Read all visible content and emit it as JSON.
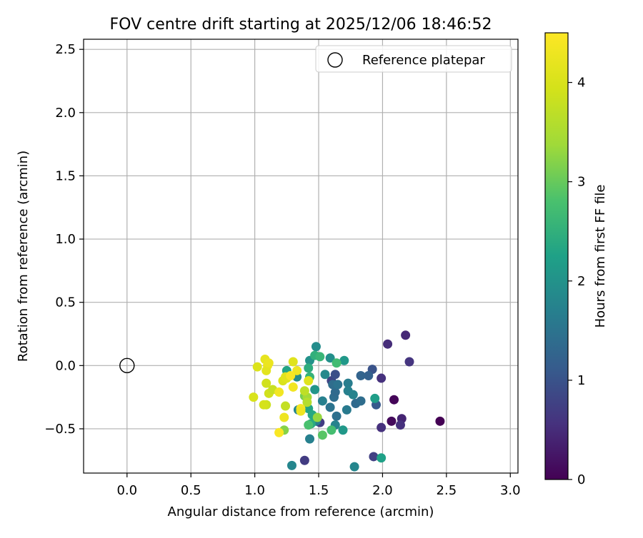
{
  "chart_data": {
    "type": "scatter",
    "title": "FOV centre drift starting at 2025/12/06 18:46:52",
    "xlabel": "Angular distance from reference (arcmin)",
    "ylabel": "Rotation from reference (arcmin)",
    "xlim": [
      -0.34,
      3.06
    ],
    "ylim": [
      -0.85,
      2.58
    ],
    "xticks": [
      0.0,
      0.5,
      1.0,
      1.5,
      2.0,
      2.5,
      3.0
    ],
    "xtick_labels": [
      "0.0",
      "0.5",
      "1.0",
      "1.5",
      "2.0",
      "2.5",
      "3.0"
    ],
    "yticks": [
      -0.5,
      0.0,
      0.5,
      1.0,
      1.5,
      2.0,
      2.5
    ],
    "ytick_labels": [
      "−0.5",
      "0.0",
      "0.5",
      "1.0",
      "1.5",
      "2.0",
      "2.5"
    ],
    "grid": true,
    "legend": {
      "placement": "upper right",
      "entries": [
        {
          "label": "Reference platepar",
          "marker": "open-circle",
          "color": "#000000"
        }
      ]
    },
    "reference_point": {
      "x": 0.0,
      "y": 0.0
    },
    "colorbar": {
      "label": "Hours from first FF file",
      "colormap": "viridis",
      "range": [
        0,
        4.5
      ],
      "ticks": [
        0,
        1,
        2,
        3,
        4
      ],
      "tick_labels": [
        "0",
        "1",
        "2",
        "3",
        "4"
      ]
    },
    "points": [
      {
        "x": 2.45,
        "y": -0.44,
        "c": 0.0
      },
      {
        "x": 2.09,
        "y": -0.27,
        "c": 0.05
      },
      {
        "x": 2.07,
        "y": -0.44,
        "c": 0.1
      },
      {
        "x": 2.15,
        "y": -0.42,
        "c": 0.4
      },
      {
        "x": 2.18,
        "y": 0.24,
        "c": 0.45
      },
      {
        "x": 2.04,
        "y": 0.17,
        "c": 0.5
      },
      {
        "x": 2.14,
        "y": -0.47,
        "c": 0.55
      },
      {
        "x": 2.21,
        "y": 0.03,
        "c": 0.6
      },
      {
        "x": 1.99,
        "y": -0.49,
        "c": 0.55
      },
      {
        "x": 1.99,
        "y": -0.1,
        "c": 0.55
      },
      {
        "x": 1.39,
        "y": -0.75,
        "c": 0.7
      },
      {
        "x": 1.93,
        "y": -0.72,
        "c": 0.75
      },
      {
        "x": 1.51,
        "y": -0.45,
        "c": 0.7
      },
      {
        "x": 1.6,
        "y": -0.12,
        "c": 0.8
      },
      {
        "x": 1.63,
        "y": -0.07,
        "c": 0.95
      },
      {
        "x": 1.92,
        "y": -0.03,
        "c": 1.0
      },
      {
        "x": 1.89,
        "y": -0.08,
        "c": 1.2
      },
      {
        "x": 1.95,
        "y": -0.31,
        "c": 1.1
      },
      {
        "x": 1.83,
        "y": -0.08,
        "c": 1.25
      },
      {
        "x": 1.79,
        "y": -0.3,
        "c": 1.35
      },
      {
        "x": 1.83,
        "y": -0.28,
        "c": 1.4
      },
      {
        "x": 1.59,
        "y": -0.33,
        "c": 1.5
      },
      {
        "x": 1.64,
        "y": -0.4,
        "c": 1.45
      },
      {
        "x": 1.62,
        "y": -0.25,
        "c": 1.4
      },
      {
        "x": 1.63,
        "y": -0.21,
        "c": 1.35
      },
      {
        "x": 1.61,
        "y": -0.15,
        "c": 1.4
      },
      {
        "x": 1.65,
        "y": -0.15,
        "c": 1.5
      },
      {
        "x": 1.73,
        "y": -0.14,
        "c": 1.65
      },
      {
        "x": 1.72,
        "y": -0.35,
        "c": 1.6
      },
      {
        "x": 1.73,
        "y": -0.2,
        "c": 1.7
      },
      {
        "x": 1.77,
        "y": -0.23,
        "c": 1.75
      },
      {
        "x": 1.53,
        "y": -0.28,
        "c": 1.7
      },
      {
        "x": 1.48,
        "y": -0.44,
        "c": 1.65
      },
      {
        "x": 1.43,
        "y": -0.58,
        "c": 1.7
      },
      {
        "x": 1.63,
        "y": -0.47,
        "c": 1.75
      },
      {
        "x": 1.34,
        "y": -0.35,
        "c": 1.8
      },
      {
        "x": 1.29,
        "y": -0.79,
        "c": 1.8
      },
      {
        "x": 1.78,
        "y": -0.8,
        "c": 1.8
      },
      {
        "x": 1.55,
        "y": -0.07,
        "c": 1.85
      },
      {
        "x": 1.48,
        "y": 0.15,
        "c": 1.9
      },
      {
        "x": 1.33,
        "y": -0.09,
        "c": 1.9
      },
      {
        "x": 1.59,
        "y": 0.06,
        "c": 1.95
      },
      {
        "x": 1.43,
        "y": 0.04,
        "c": 2.0
      },
      {
        "x": 1.7,
        "y": 0.04,
        "c": 2.1
      },
      {
        "x": 1.47,
        "y": -0.19,
        "c": 2.05
      },
      {
        "x": 1.69,
        "y": -0.51,
        "c": 2.1
      },
      {
        "x": 1.94,
        "y": -0.26,
        "c": 2.2
      },
      {
        "x": 1.99,
        "y": -0.73,
        "c": 2.25
      },
      {
        "x": 1.25,
        "y": -0.04,
        "c": 2.3
      },
      {
        "x": 1.42,
        "y": -0.34,
        "c": 2.3
      },
      {
        "x": 1.45,
        "y": -0.39,
        "c": 2.35
      },
      {
        "x": 1.44,
        "y": -0.46,
        "c": 2.4
      },
      {
        "x": 1.42,
        "y": -0.02,
        "c": 2.45
      },
      {
        "x": 1.47,
        "y": 0.08,
        "c": 2.5
      },
      {
        "x": 1.43,
        "y": -0.09,
        "c": 2.55
      },
      {
        "x": 1.51,
        "y": 0.07,
        "c": 2.6
      },
      {
        "x": 1.64,
        "y": 0.02,
        "c": 2.7
      },
      {
        "x": 1.6,
        "y": -0.51,
        "c": 2.75
      },
      {
        "x": 1.42,
        "y": -0.47,
        "c": 2.8
      },
      {
        "x": 1.53,
        "y": -0.55,
        "c": 2.9
      },
      {
        "x": 1.23,
        "y": -0.51,
        "c": 3.2
      },
      {
        "x": 1.39,
        "y": -0.24,
        "c": 3.1
      },
      {
        "x": 1.41,
        "y": -0.25,
        "c": 3.4
      },
      {
        "x": 1.49,
        "y": -0.41,
        "c": 3.3
      },
      {
        "x": 1.41,
        "y": -0.29,
        "c": 3.6
      },
      {
        "x": 1.39,
        "y": -0.2,
        "c": 3.7
      },
      {
        "x": 1.24,
        "y": -0.32,
        "c": 3.75
      },
      {
        "x": 1.09,
        "y": -0.31,
        "c": 3.85
      },
      {
        "x": 1.11,
        "y": -0.22,
        "c": 3.9
      },
      {
        "x": 1.14,
        "y": -0.19,
        "c": 3.8
      },
      {
        "x": 1.07,
        "y": -0.31,
        "c": 3.95
      },
      {
        "x": 0.99,
        "y": -0.25,
        "c": 4.0
      },
      {
        "x": 1.02,
        "y": -0.01,
        "c": 4.05
      },
      {
        "x": 1.09,
        "y": -0.14,
        "c": 3.9
      },
      {
        "x": 1.22,
        "y": -0.12,
        "c": 4.0
      },
      {
        "x": 1.25,
        "y": -0.1,
        "c": 4.05
      },
      {
        "x": 1.24,
        "y": -0.09,
        "c": 4.1
      },
      {
        "x": 1.3,
        "y": 0.03,
        "c": 4.1
      },
      {
        "x": 1.42,
        "y": -0.12,
        "c": 4.1
      },
      {
        "x": 1.08,
        "y": 0.05,
        "c": 4.2
      },
      {
        "x": 1.1,
        "y": 0.0,
        "c": 4.25
      },
      {
        "x": 1.09,
        "y": -0.04,
        "c": 4.15
      },
      {
        "x": 1.11,
        "y": 0.02,
        "c": 4.25
      },
      {
        "x": 1.33,
        "y": -0.04,
        "c": 4.3
      },
      {
        "x": 1.19,
        "y": -0.21,
        "c": 4.35
      },
      {
        "x": 1.23,
        "y": -0.41,
        "c": 4.3
      },
      {
        "x": 1.3,
        "y": -0.17,
        "c": 4.35
      },
      {
        "x": 1.36,
        "y": -0.34,
        "c": 4.4
      },
      {
        "x": 1.19,
        "y": -0.53,
        "c": 4.45
      },
      {
        "x": 1.28,
        "y": -0.08,
        "c": 4.4
      },
      {
        "x": 1.36,
        "y": -0.36,
        "c": 4.3
      }
    ]
  }
}
